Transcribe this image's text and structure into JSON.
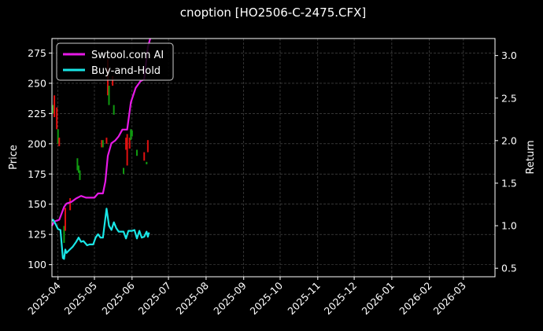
{
  "chart_data": {
    "type": "line",
    "title": "cnoption [HO2506-C-2475.CFX]",
    "ylabel": "Price",
    "y2label": "Return",
    "ylim": [
      90,
      287
    ],
    "y2lim": [
      0.4,
      3.2
    ],
    "xlim": [
      "2025-03-27",
      "2026-03-27"
    ],
    "grid": true,
    "legend_position": "top-left",
    "yticks": [
      100,
      125,
      150,
      175,
      200,
      225,
      250,
      275
    ],
    "y2ticks": [
      "0.5",
      "1.0",
      "1.5",
      "2.0",
      "2.5",
      "3.0"
    ],
    "xticks": [
      "2025-04",
      "2025-05",
      "2025-06",
      "2025-07",
      "2025-08",
      "2025-09",
      "2025-10",
      "2025-11",
      "2025-12",
      "2026-01",
      "2026-02",
      "2026-03"
    ],
    "xtick_dates": [
      "2025-04-01",
      "2025-05-01",
      "2025-06-01",
      "2025-07-01",
      "2025-08-01",
      "2025-09-01",
      "2025-10-01",
      "2025-11-01",
      "2025-12-01",
      "2026-01-01",
      "2026-02-01",
      "2026-03-01"
    ],
    "candles": [
      {
        "date": "2025-03-28",
        "open": 225,
        "close": 232,
        "color": "green"
      },
      {
        "date": "2025-03-29",
        "open": 240,
        "close": 222,
        "color": "red"
      },
      {
        "date": "2025-03-31",
        "open": 230,
        "close": 212,
        "color": "red"
      },
      {
        "date": "2025-04-01",
        "open": 212,
        "close": 200,
        "color": "green"
      },
      {
        "date": "2025-04-02",
        "open": 205,
        "close": 198,
        "color": "red"
      },
      {
        "date": "2025-04-06",
        "open": 132,
        "close": 118,
        "color": "green"
      },
      {
        "date": "2025-04-07",
        "open": 147,
        "close": 128,
        "color": "red"
      },
      {
        "date": "2025-04-11",
        "open": 155,
        "close": 145,
        "color": "red"
      },
      {
        "date": "2025-04-17",
        "open": 178,
        "close": 188,
        "color": "green"
      },
      {
        "date": "2025-04-18",
        "open": 182,
        "close": 176,
        "color": "green"
      },
      {
        "date": "2025-04-19",
        "open": 178,
        "close": 170,
        "color": "green"
      },
      {
        "date": "2025-05-07",
        "open": 197,
        "close": 203,
        "color": "red"
      },
      {
        "date": "2025-05-08",
        "open": 203,
        "close": 197,
        "color": "green"
      },
      {
        "date": "2025-05-11",
        "open": 205,
        "close": 200,
        "color": "red"
      },
      {
        "date": "2025-05-12",
        "open": 270,
        "close": 240,
        "color": "red"
      },
      {
        "date": "2025-05-13",
        "open": 248,
        "close": 232,
        "color": "green"
      },
      {
        "date": "2025-05-16",
        "open": 256,
        "close": 248,
        "color": "red"
      },
      {
        "date": "2025-05-17",
        "open": 232,
        "close": 224,
        "color": "green"
      },
      {
        "date": "2025-05-25",
        "open": 175,
        "close": 180,
        "color": "green"
      },
      {
        "date": "2025-05-27",
        "open": 205,
        "close": 195,
        "color": "red"
      },
      {
        "date": "2025-05-28",
        "open": 208,
        "close": 182,
        "color": "red"
      },
      {
        "date": "2025-05-30",
        "open": 205,
        "close": 196,
        "color": "red"
      },
      {
        "date": "2025-05-31",
        "open": 212,
        "close": 203,
        "color": "green"
      },
      {
        "date": "2025-06-01",
        "open": 211,
        "close": 206,
        "color": "green"
      },
      {
        "date": "2025-06-05",
        "open": 195,
        "close": 190,
        "color": "green"
      },
      {
        "date": "2025-06-11",
        "open": 193,
        "close": 186,
        "color": "red"
      },
      {
        "date": "2025-06-13",
        "open": 185,
        "close": 183,
        "color": "green"
      },
      {
        "date": "2025-06-14",
        "open": 203,
        "close": 193,
        "color": "red"
      }
    ],
    "series": [
      {
        "name": "Swtool.com AI",
        "color": "#e619e6",
        "axis": "return",
        "points": [
          [
            "2025-03-27",
            1.0
          ],
          [
            "2025-03-29",
            1.05
          ],
          [
            "2025-04-02",
            1.07
          ],
          [
            "2025-04-06",
            1.22
          ],
          [
            "2025-04-08",
            1.26
          ],
          [
            "2025-04-12",
            1.28
          ],
          [
            "2025-04-16",
            1.32
          ],
          [
            "2025-04-20",
            1.35
          ],
          [
            "2025-04-24",
            1.33
          ],
          [
            "2025-05-01",
            1.33
          ],
          [
            "2025-05-04",
            1.38
          ],
          [
            "2025-05-08",
            1.38
          ],
          [
            "2025-05-10",
            1.52
          ],
          [
            "2025-05-12",
            1.82
          ],
          [
            "2025-05-15",
            1.97
          ],
          [
            "2025-05-18",
            2.0
          ],
          [
            "2025-05-21",
            2.05
          ],
          [
            "2025-05-24",
            2.13
          ],
          [
            "2025-05-28",
            2.13
          ],
          [
            "2025-05-31",
            2.45
          ],
          [
            "2025-06-04",
            2.62
          ],
          [
            "2025-06-08",
            2.7
          ],
          [
            "2025-06-11",
            2.72
          ],
          [
            "2025-06-14",
            3.1
          ],
          [
            "2025-06-16",
            3.2
          ]
        ]
      },
      {
        "name": "Buy-and-Hold",
        "color": "#19e6e6",
        "axis": "return",
        "points": [
          [
            "2025-03-27",
            1.06
          ],
          [
            "2025-03-28",
            1.07
          ],
          [
            "2025-03-30",
            1.02
          ],
          [
            "2025-04-01",
            0.96
          ],
          [
            "2025-04-03",
            0.95
          ],
          [
            "2025-04-05",
            0.62
          ],
          [
            "2025-04-06",
            0.61
          ],
          [
            "2025-04-07",
            0.72
          ],
          [
            "2025-04-08",
            0.68
          ],
          [
            "2025-04-10",
            0.71
          ],
          [
            "2025-04-13",
            0.75
          ],
          [
            "2025-04-16",
            0.81
          ],
          [
            "2025-04-18",
            0.86
          ],
          [
            "2025-04-20",
            0.81
          ],
          [
            "2025-04-22",
            0.82
          ],
          [
            "2025-04-25",
            0.77
          ],
          [
            "2025-04-27",
            0.78
          ],
          [
            "2025-04-30",
            0.78
          ],
          [
            "2025-05-02",
            0.86
          ],
          [
            "2025-05-04",
            0.9
          ],
          [
            "2025-05-06",
            0.86
          ],
          [
            "2025-05-08",
            0.86
          ],
          [
            "2025-05-11",
            1.2
          ],
          [
            "2025-05-13",
            1.0
          ],
          [
            "2025-05-15",
            0.95
          ],
          [
            "2025-05-17",
            1.04
          ],
          [
            "2025-05-19",
            0.97
          ],
          [
            "2025-05-21",
            0.93
          ],
          [
            "2025-05-23",
            0.93
          ],
          [
            "2025-05-25",
            0.93
          ],
          [
            "2025-05-27",
            0.85
          ],
          [
            "2025-05-29",
            0.94
          ],
          [
            "2025-06-01",
            0.94
          ],
          [
            "2025-06-03",
            0.95
          ],
          [
            "2025-06-05",
            0.85
          ],
          [
            "2025-06-07",
            0.94
          ],
          [
            "2025-06-09",
            0.86
          ],
          [
            "2025-06-11",
            0.87
          ],
          [
            "2025-06-13",
            0.93
          ],
          [
            "2025-06-14",
            0.87
          ],
          [
            "2025-06-15",
            0.92
          ]
        ]
      }
    ]
  }
}
